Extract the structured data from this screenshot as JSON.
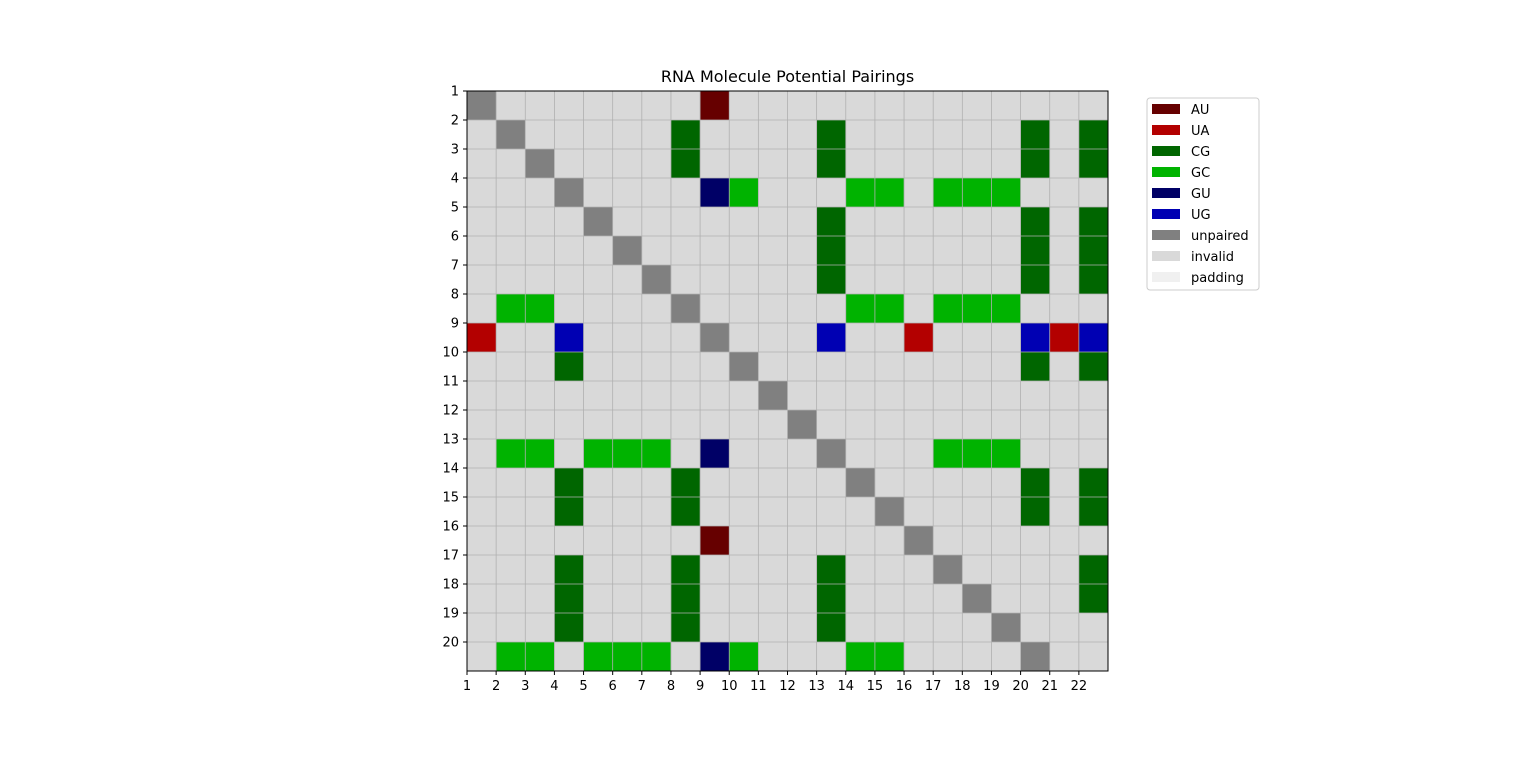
{
  "chart_data": {
    "type": "heatmap",
    "title": "RNA Molecule Potential Pairings",
    "xlabel": "",
    "ylabel": "",
    "x_ticks": [
      "1",
      "2",
      "3",
      "4",
      "5",
      "6",
      "7",
      "8",
      "9",
      "10",
      "11",
      "12",
      "13",
      "14",
      "15",
      "16",
      "17",
      "18",
      "19",
      "20",
      "21",
      "22"
    ],
    "y_ticks": [
      "1",
      "2",
      "3",
      "4",
      "5",
      "6",
      "7",
      "8",
      "9",
      "10",
      "11",
      "12",
      "13",
      "14",
      "15",
      "16",
      "17",
      "18",
      "19",
      "20"
    ],
    "n_cols": 22,
    "n_rows": 20,
    "grid": true,
    "legend_position": "outside-right",
    "categories": [
      {
        "key": "AU",
        "label": "AU",
        "color": "#660000"
      },
      {
        "key": "UA",
        "label": "UA",
        "color": "#b30000"
      },
      {
        "key": "CG",
        "label": "CG",
        "color": "#006600"
      },
      {
        "key": "GC",
        "label": "GC",
        "color": "#00b300"
      },
      {
        "key": "GU",
        "label": "GU",
        "color": "#000066"
      },
      {
        "key": "UG",
        "label": "UG",
        "color": "#0000b3"
      },
      {
        "key": "unpaired",
        "label": "unpaired",
        "color": "#808080"
      },
      {
        "key": "invalid",
        "label": "invalid",
        "color": "#d9d9d9"
      },
      {
        "key": "padding",
        "label": "padding",
        "color": "#f0f0f0"
      }
    ],
    "default_category": "invalid",
    "cells": [
      {
        "row": 1,
        "col": 1,
        "category": "unpaired"
      },
      {
        "row": 1,
        "col": 9,
        "category": "AU"
      },
      {
        "row": 2,
        "col": 2,
        "category": "unpaired"
      },
      {
        "row": 2,
        "col": 8,
        "category": "CG"
      },
      {
        "row": 2,
        "col": 13,
        "category": "CG"
      },
      {
        "row": 2,
        "col": 20,
        "category": "CG"
      },
      {
        "row": 2,
        "col": 22,
        "category": "CG"
      },
      {
        "row": 3,
        "col": 3,
        "category": "unpaired"
      },
      {
        "row": 3,
        "col": 8,
        "category": "CG"
      },
      {
        "row": 3,
        "col": 13,
        "category": "CG"
      },
      {
        "row": 3,
        "col": 20,
        "category": "CG"
      },
      {
        "row": 3,
        "col": 22,
        "category": "CG"
      },
      {
        "row": 4,
        "col": 4,
        "category": "unpaired"
      },
      {
        "row": 4,
        "col": 9,
        "category": "GU"
      },
      {
        "row": 4,
        "col": 10,
        "category": "GC"
      },
      {
        "row": 4,
        "col": 14,
        "category": "GC"
      },
      {
        "row": 4,
        "col": 15,
        "category": "GC"
      },
      {
        "row": 4,
        "col": 17,
        "category": "GC"
      },
      {
        "row": 4,
        "col": 18,
        "category": "GC"
      },
      {
        "row": 4,
        "col": 19,
        "category": "GC"
      },
      {
        "row": 5,
        "col": 5,
        "category": "unpaired"
      },
      {
        "row": 5,
        "col": 13,
        "category": "CG"
      },
      {
        "row": 5,
        "col": 20,
        "category": "CG"
      },
      {
        "row": 5,
        "col": 22,
        "category": "CG"
      },
      {
        "row": 6,
        "col": 6,
        "category": "unpaired"
      },
      {
        "row": 6,
        "col": 13,
        "category": "CG"
      },
      {
        "row": 6,
        "col": 20,
        "category": "CG"
      },
      {
        "row": 6,
        "col": 22,
        "category": "CG"
      },
      {
        "row": 7,
        "col": 7,
        "category": "unpaired"
      },
      {
        "row": 7,
        "col": 13,
        "category": "CG"
      },
      {
        "row": 7,
        "col": 20,
        "category": "CG"
      },
      {
        "row": 7,
        "col": 22,
        "category": "CG"
      },
      {
        "row": 8,
        "col": 2,
        "category": "GC"
      },
      {
        "row": 8,
        "col": 3,
        "category": "GC"
      },
      {
        "row": 8,
        "col": 8,
        "category": "unpaired"
      },
      {
        "row": 8,
        "col": 14,
        "category": "GC"
      },
      {
        "row": 8,
        "col": 15,
        "category": "GC"
      },
      {
        "row": 8,
        "col": 17,
        "category": "GC"
      },
      {
        "row": 8,
        "col": 18,
        "category": "GC"
      },
      {
        "row": 8,
        "col": 19,
        "category": "GC"
      },
      {
        "row": 9,
        "col": 1,
        "category": "UA"
      },
      {
        "row": 9,
        "col": 4,
        "category": "UG"
      },
      {
        "row": 9,
        "col": 9,
        "category": "unpaired"
      },
      {
        "row": 9,
        "col": 13,
        "category": "UG"
      },
      {
        "row": 9,
        "col": 16,
        "category": "UA"
      },
      {
        "row": 9,
        "col": 20,
        "category": "UG"
      },
      {
        "row": 9,
        "col": 21,
        "category": "UA"
      },
      {
        "row": 9,
        "col": 22,
        "category": "UG"
      },
      {
        "row": 10,
        "col": 4,
        "category": "CG"
      },
      {
        "row": 10,
        "col": 10,
        "category": "unpaired"
      },
      {
        "row": 10,
        "col": 20,
        "category": "CG"
      },
      {
        "row": 10,
        "col": 22,
        "category": "CG"
      },
      {
        "row": 11,
        "col": 11,
        "category": "unpaired"
      },
      {
        "row": 12,
        "col": 12,
        "category": "unpaired"
      },
      {
        "row": 13,
        "col": 2,
        "category": "GC"
      },
      {
        "row": 13,
        "col": 3,
        "category": "GC"
      },
      {
        "row": 13,
        "col": 5,
        "category": "GC"
      },
      {
        "row": 13,
        "col": 6,
        "category": "GC"
      },
      {
        "row": 13,
        "col": 7,
        "category": "GC"
      },
      {
        "row": 13,
        "col": 9,
        "category": "GU"
      },
      {
        "row": 13,
        "col": 13,
        "category": "unpaired"
      },
      {
        "row": 13,
        "col": 17,
        "category": "GC"
      },
      {
        "row": 13,
        "col": 18,
        "category": "GC"
      },
      {
        "row": 13,
        "col": 19,
        "category": "GC"
      },
      {
        "row": 14,
        "col": 4,
        "category": "CG"
      },
      {
        "row": 14,
        "col": 8,
        "category": "CG"
      },
      {
        "row": 14,
        "col": 14,
        "category": "unpaired"
      },
      {
        "row": 14,
        "col": 20,
        "category": "CG"
      },
      {
        "row": 14,
        "col": 22,
        "category": "CG"
      },
      {
        "row": 15,
        "col": 4,
        "category": "CG"
      },
      {
        "row": 15,
        "col": 8,
        "category": "CG"
      },
      {
        "row": 15,
        "col": 15,
        "category": "unpaired"
      },
      {
        "row": 15,
        "col": 20,
        "category": "CG"
      },
      {
        "row": 15,
        "col": 22,
        "category": "CG"
      },
      {
        "row": 16,
        "col": 9,
        "category": "AU"
      },
      {
        "row": 16,
        "col": 16,
        "category": "unpaired"
      },
      {
        "row": 17,
        "col": 4,
        "category": "CG"
      },
      {
        "row": 17,
        "col": 8,
        "category": "CG"
      },
      {
        "row": 17,
        "col": 13,
        "category": "CG"
      },
      {
        "row": 17,
        "col": 17,
        "category": "unpaired"
      },
      {
        "row": 17,
        "col": 22,
        "category": "CG"
      },
      {
        "row": 18,
        "col": 4,
        "category": "CG"
      },
      {
        "row": 18,
        "col": 8,
        "category": "CG"
      },
      {
        "row": 18,
        "col": 13,
        "category": "CG"
      },
      {
        "row": 18,
        "col": 18,
        "category": "unpaired"
      },
      {
        "row": 18,
        "col": 22,
        "category": "CG"
      },
      {
        "row": 19,
        "col": 4,
        "category": "CG"
      },
      {
        "row": 19,
        "col": 8,
        "category": "CG"
      },
      {
        "row": 19,
        "col": 13,
        "category": "CG"
      },
      {
        "row": 19,
        "col": 19,
        "category": "unpaired"
      },
      {
        "row": 20,
        "col": 2,
        "category": "GC"
      },
      {
        "row": 20,
        "col": 3,
        "category": "GC"
      },
      {
        "row": 20,
        "col": 5,
        "category": "GC"
      },
      {
        "row": 20,
        "col": 6,
        "category": "GC"
      },
      {
        "row": 20,
        "col": 7,
        "category": "GC"
      },
      {
        "row": 20,
        "col": 9,
        "category": "GU"
      },
      {
        "row": 20,
        "col": 10,
        "category": "GC"
      },
      {
        "row": 20,
        "col": 14,
        "category": "GC"
      },
      {
        "row": 20,
        "col": 15,
        "category": "GC"
      },
      {
        "row": 20,
        "col": 20,
        "category": "unpaired"
      }
    ]
  }
}
